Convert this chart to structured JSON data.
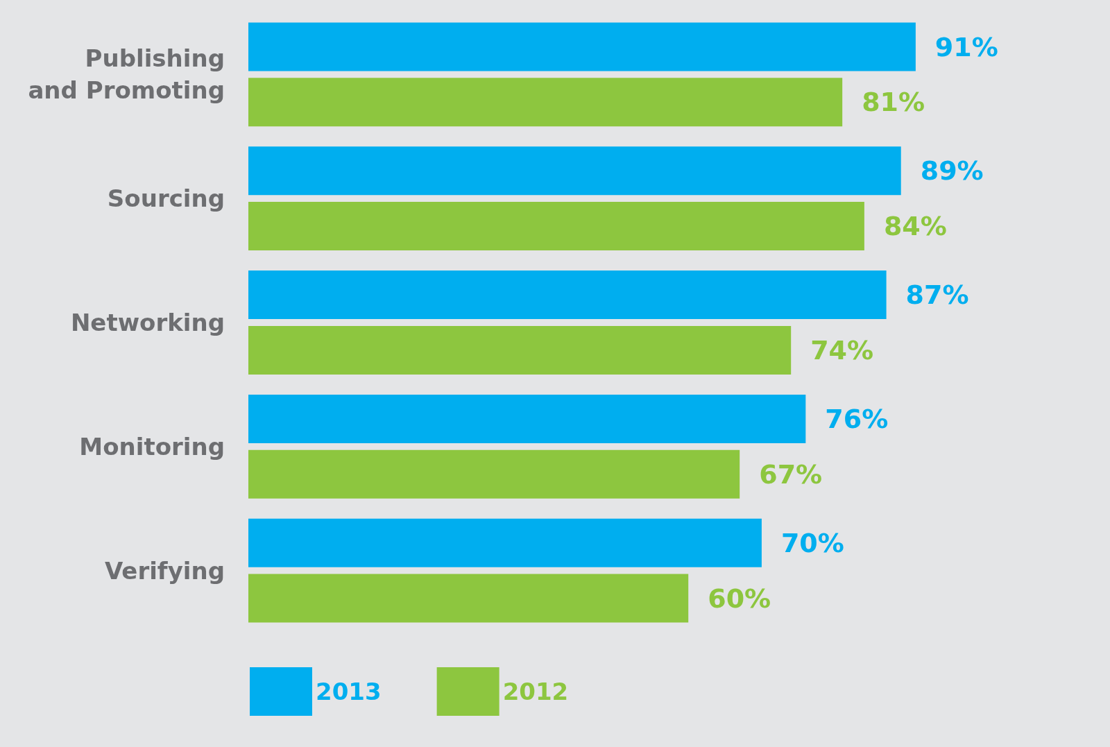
{
  "chart_data": {
    "type": "bar",
    "orientation": "horizontal",
    "categories": [
      "Publishing\nand Promoting",
      "Sourcing",
      "Networking",
      "Monitoring",
      "Verifying"
    ],
    "series": [
      {
        "name": "2013",
        "color": "#00aeef",
        "values": [
          91,
          89,
          87,
          76,
          70
        ],
        "value_labels": [
          "91%",
          "89%",
          "87%",
          "76%",
          "70%"
        ]
      },
      {
        "name": "2012",
        "color": "#8dc63f",
        "values": [
          81,
          84,
          74,
          67,
          60
        ],
        "value_labels": [
          "81%",
          "84%",
          "74%",
          "67%",
          "60%"
        ]
      }
    ],
    "tick_labels": "y",
    "legend": "bottom left",
    "grid": false
  }
}
